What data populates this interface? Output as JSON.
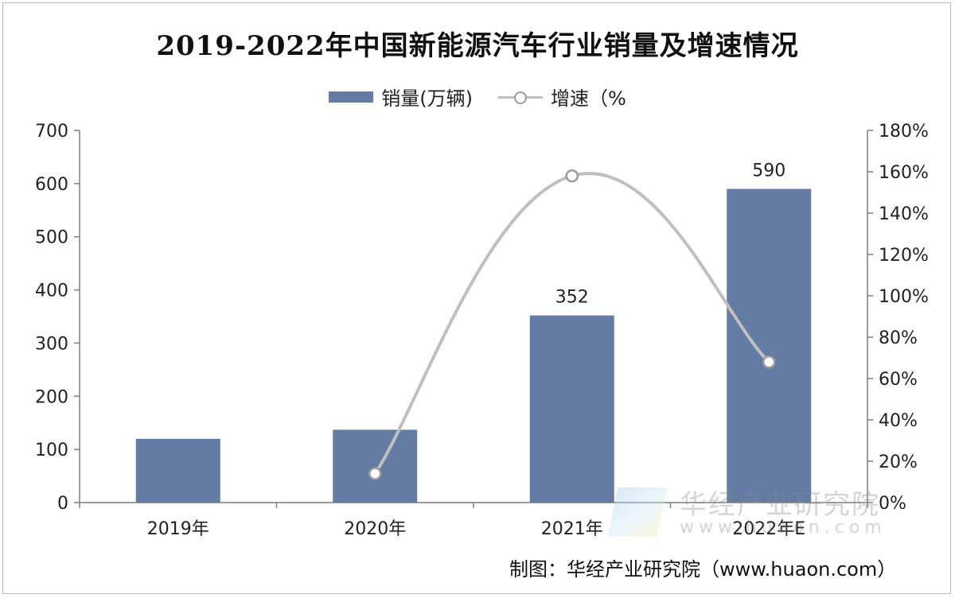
{
  "title": "2019-2022年中国新能源汽车行业销量及增速情况",
  "legend": {
    "bar_label": "销量(万辆)",
    "line_label": "增速（%"
  },
  "source": "制图：华经产业研究院（www.huaon.com）",
  "watermark": {
    "text": "华经产业研究院",
    "url": "www.huaon.com"
  },
  "colors": {
    "bar": "#647CA4",
    "line": "#BFBFBF",
    "marker_stroke": "#9A9A9A",
    "axis": "#7F7F7F",
    "text": "#222222"
  },
  "chart_data": {
    "type": "bar",
    "categories": [
      "2019年",
      "2020年",
      "2021年",
      "2022年E"
    ],
    "series": [
      {
        "name": "销量(万辆)",
        "type": "bar",
        "axis": "left",
        "values": [
          120,
          137,
          352,
          590
        ],
        "data_labels": [
          "",
          "",
          "352",
          "590"
        ]
      },
      {
        "name": "增速（%",
        "type": "line",
        "axis": "right",
        "smooth": true,
        "markers": true,
        "values": [
          null,
          14,
          158,
          68
        ]
      }
    ],
    "y_left": {
      "min": 0,
      "max": 700,
      "step": 100,
      "ticks": [
        "0",
        "100",
        "200",
        "300",
        "400",
        "500",
        "600",
        "700"
      ]
    },
    "y_right": {
      "min": 0,
      "max": 180,
      "step": 20,
      "ticks": [
        "0%",
        "20%",
        "40%",
        "60%",
        "80%",
        "100%",
        "120%",
        "140%",
        "160%",
        "180%"
      ]
    },
    "grid": false,
    "legend_position": "top-center"
  }
}
